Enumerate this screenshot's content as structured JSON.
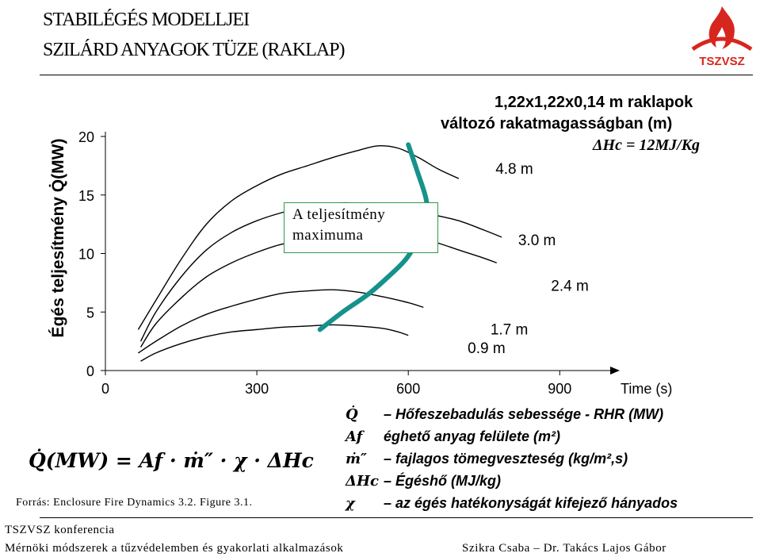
{
  "header": {
    "title_line1": "STABILÉGÉS MODELLJEI",
    "title_line2": "SZILÁRD ANYAGOK TÜZE (RAKLAP)",
    "logo_text": "TSZVSZ"
  },
  "annotations": {
    "line1": "1,22x1,22x0,14 m raklapok",
    "line2": "változó rakatmagasságban (m)",
    "line3": "ΔHc = 12MJ/Kg"
  },
  "max_box": {
    "line1": "A teljesítmény",
    "line2": "maximuma"
  },
  "formula": "Q̇(MW) = Af · ṁ″ · χ · ΔHc",
  "legend": [
    {
      "sym": "Q̇",
      "text": "– Hőfeszebadulás sebessége - RHR (MW)"
    },
    {
      "sym": "Af",
      "text": "éghető anyag felülete (m²)"
    },
    {
      "sym": "ṁ″",
      "text": "– fajlagos tömegveszteség (kg/m²,s)"
    },
    {
      "sym": "ΔHc",
      "text": "– Égéshő (MJ/kg)"
    },
    {
      "sym": "χ",
      "text": "– az égés hatékonyságát kifejező hányados"
    }
  ],
  "source": "Forrás: Enclosure Fire Dynamics 3.2. Figure 3.1.",
  "footer": {
    "line1": "TSZVSZ konferencia",
    "line2": "Mérnöki módszerek a tűzvédelemben és gyakorlati alkalmazások",
    "authors": "Szikra Csaba – Dr. Takács Lajos Gábor"
  },
  "colors": {
    "max_curve": "#16928c",
    "box_border": "#2e9a4a"
  },
  "chart_data": {
    "type": "line",
    "xlabel": "Time (s)",
    "ylabel": "Égés teljesítmény Q̇(MW)",
    "xlim": [
      0,
      1000
    ],
    "ylim": [
      0,
      20
    ],
    "xticks": [
      0,
      300,
      600,
      900
    ],
    "yticks": [
      0,
      5,
      10,
      15,
      20
    ],
    "series": [
      {
        "name": "4.8 m",
        "points": [
          [
            65,
            3.5
          ],
          [
            100,
            6
          ],
          [
            150,
            9.5
          ],
          [
            200,
            12.5
          ],
          [
            250,
            14.5
          ],
          [
            300,
            15.8
          ],
          [
            350,
            16.8
          ],
          [
            400,
            17.5
          ],
          [
            450,
            18.2
          ],
          [
            500,
            18.8
          ],
          [
            540,
            19.2
          ],
          [
            580,
            19.0
          ],
          [
            620,
            18.2
          ],
          [
            660,
            17.2
          ],
          [
            700,
            16.4
          ]
        ]
      },
      {
        "name": "3.0 m",
        "points": [
          [
            70,
            2.5
          ],
          [
            100,
            5
          ],
          [
            150,
            8
          ],
          [
            200,
            10.3
          ],
          [
            250,
            11.8
          ],
          [
            300,
            12.8
          ],
          [
            350,
            13.5
          ],
          [
            400,
            14
          ],
          [
            450,
            14.3
          ],
          [
            500,
            14.3
          ],
          [
            550,
            14
          ],
          [
            600,
            13.7
          ],
          [
            650,
            13.3
          ],
          [
            700,
            12.8
          ],
          [
            750,
            12.0
          ],
          [
            785,
            11.4
          ]
        ]
      },
      {
        "name": "2.4 m",
        "points": [
          [
            70,
            2
          ],
          [
            100,
            4
          ],
          [
            150,
            6.2
          ],
          [
            200,
            8
          ],
          [
            250,
            9.2
          ],
          [
            300,
            10.1
          ],
          [
            350,
            10.8
          ],
          [
            400,
            11.1
          ],
          [
            450,
            11.4
          ],
          [
            500,
            11.6
          ],
          [
            550,
            11.6
          ],
          [
            600,
            11.4
          ],
          [
            650,
            11.0
          ],
          [
            700,
            10.3
          ],
          [
            750,
            9.6
          ],
          [
            775,
            9.2
          ]
        ]
      },
      {
        "name": "1.7 m",
        "points": [
          [
            65,
            1.5
          ],
          [
            100,
            2.5
          ],
          [
            150,
            3.8
          ],
          [
            200,
            4.8
          ],
          [
            250,
            5.5
          ],
          [
            300,
            6.1
          ],
          [
            350,
            6.6
          ],
          [
            400,
            6.8
          ],
          [
            450,
            6.9
          ],
          [
            500,
            6.7
          ],
          [
            550,
            6.3
          ],
          [
            600,
            5.8
          ],
          [
            630,
            5.4
          ]
        ]
      },
      {
        "name": "0.9 m",
        "points": [
          [
            70,
            0.8
          ],
          [
            100,
            1.5
          ],
          [
            150,
            2.3
          ],
          [
            200,
            2.9
          ],
          [
            250,
            3.3
          ],
          [
            300,
            3.5
          ],
          [
            350,
            3.7
          ],
          [
            400,
            3.8
          ],
          [
            450,
            3.9
          ],
          [
            500,
            3.8
          ],
          [
            550,
            3.6
          ],
          [
            580,
            3.3
          ],
          [
            600,
            3.0
          ]
        ]
      }
    ],
    "max_curve": {
      "points": [
        [
          425,
          3.5
        ],
        [
          470,
          5
        ],
        [
          520,
          6.5
        ],
        [
          560,
          8
        ],
        [
          595,
          9.5
        ],
        [
          620,
          11.2
        ],
        [
          638,
          12.8
        ],
        [
          635,
          14.7
        ],
        [
          618,
          17
        ],
        [
          600,
          19.3
        ]
      ]
    },
    "curve_labels": [
      {
        "series": "4.8 m",
        "x": 810,
        "y": 16.8
      },
      {
        "series": "3.0 m",
        "x": 855,
        "y": 10.7
      },
      {
        "series": "2.4 m",
        "x": 920,
        "y": 6.8
      },
      {
        "series": "1.7 m",
        "x": 800,
        "y": 3.1
      },
      {
        "series": "0.9 m",
        "x": 755,
        "y": 1.5
      }
    ]
  }
}
